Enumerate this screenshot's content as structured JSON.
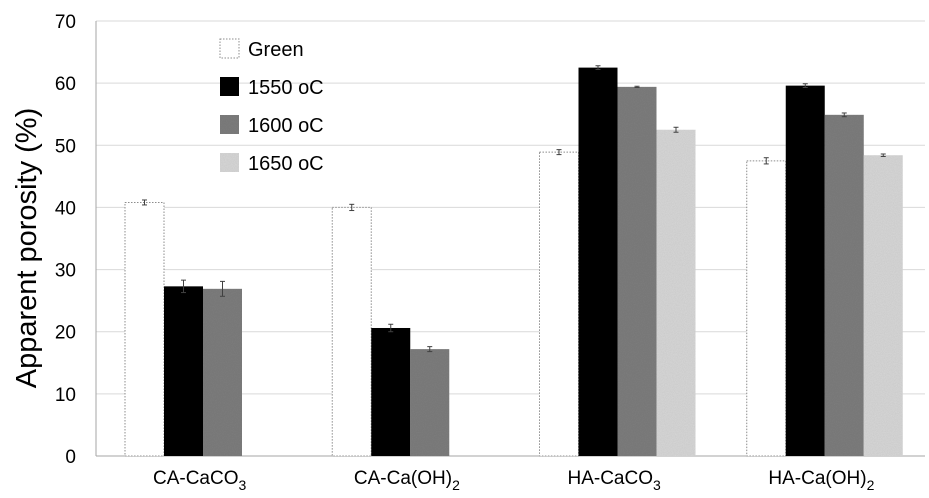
{
  "chart_data": {
    "type": "bar",
    "title": "",
    "ylabel": "Apparent porosity (%)",
    "xlabel": "",
    "ylim": [
      0,
      70
    ],
    "yticks": [
      0,
      10,
      20,
      30,
      40,
      50,
      60,
      70
    ],
    "grid": "horizontal",
    "legend_position": "top-left",
    "categories": [
      {
        "base": "CA-CaCO",
        "sub": "3",
        "tail": ""
      },
      {
        "base": "CA-Ca(OH)",
        "sub": "2",
        "tail": ""
      },
      {
        "base": "HA-CaCO",
        "sub": "3",
        "tail": ""
      },
      {
        "base": "HA-Ca(OH)",
        "sub": "2",
        "tail": ""
      }
    ],
    "series": [
      {
        "name": "Green",
        "legend_unit": "",
        "color": "#ffffff",
        "style": "dotted-outline",
        "values": [
          40.8,
          40.0,
          48.9,
          47.5
        ],
        "errors": [
          0.4,
          0.5,
          0.4,
          0.5
        ]
      },
      {
        "name": "1550 ",
        "legend_unit": "oC",
        "color": "#000000",
        "style": "solid",
        "values": [
          27.3,
          20.6,
          62.5,
          59.6
        ],
        "errors": [
          1.0,
          0.6,
          0.3,
          0.3
        ]
      },
      {
        "name": "1600 ",
        "legend_unit": "oC",
        "color": "#7f7f7f",
        "style": "textured",
        "values": [
          26.9,
          17.2,
          59.4,
          54.9
        ],
        "errors": [
          1.2,
          0.4,
          0.1,
          0.3
        ]
      },
      {
        "name": "1650 ",
        "legend_unit": "oC",
        "color": "#d9d9d9",
        "style": "textured",
        "values": [
          null,
          null,
          52.5,
          48.4
        ],
        "errors": [
          null,
          null,
          0.4,
          0.2
        ]
      }
    ]
  }
}
